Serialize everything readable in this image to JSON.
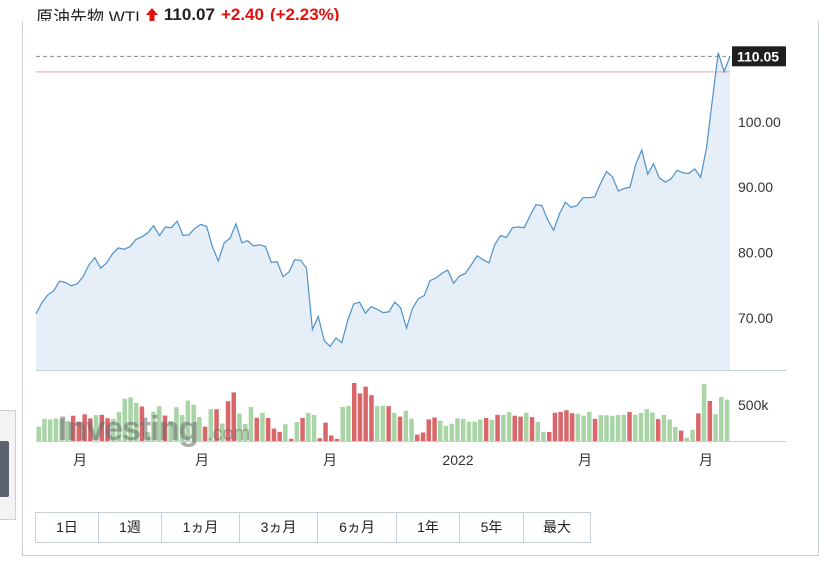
{
  "header": {
    "instrument": "原油先物 WTI",
    "direction_icon": "up-arrow-icon",
    "price": "110.07",
    "change": "+2.40",
    "change_percent": "(+2.23%)",
    "up_color": "#e0120e"
  },
  "watermark": {
    "main": "Investing",
    "suffix": ".com"
  },
  "range_buttons": [
    "1日",
    "1週",
    "1ヵ月",
    "3ヵ月",
    "6ヵ月",
    "1年",
    "5年",
    "最大"
  ],
  "chart_data": {
    "type": "area",
    "title": "",
    "xlabel": "",
    "ylabel": "",
    "ylim": [
      62,
      115
    ],
    "y_ticks": [
      "70.00",
      "80.00",
      "90.00",
      "100.00"
    ],
    "x_ticks": [
      "月",
      "月",
      "月",
      "2022",
      "月",
      "月"
    ],
    "last_price_label": "110.05",
    "reference_line": 107.67,
    "line_color": "#4e91c9",
    "fill_color": "#e6eef7",
    "grid": false,
    "series": [
      {
        "values": [
          70.6,
          72.3,
          73.5,
          74.1,
          75.6,
          75.4,
          74.9,
          75.2,
          76.3,
          78.1,
          79.2,
          77.6,
          78.4,
          79.8,
          80.7,
          80.5,
          80.9,
          82.0,
          82.4,
          83.0,
          84.1,
          82.6,
          83.9,
          83.8,
          84.8,
          82.6,
          82.7,
          83.7,
          84.3,
          84.0,
          80.9,
          78.7,
          81.5,
          82.2,
          84.4,
          81.5,
          81.8,
          81.0,
          81.2,
          80.9,
          78.5,
          78.6,
          76.3,
          77.0,
          78.9,
          78.8,
          77.6,
          68.2,
          70.2,
          66.5,
          65.6,
          66.9,
          66.2,
          69.6,
          72.1,
          72.4,
          70.7,
          71.7,
          71.3,
          70.8,
          70.9,
          72.4,
          71.5,
          68.4,
          71.4,
          72.9,
          73.4,
          75.7,
          76.1,
          76.8,
          77.3,
          75.3,
          76.4,
          76.8,
          78.1,
          79.5,
          78.9,
          78.4,
          81.2,
          82.6,
          82.3,
          83.8,
          83.9,
          83.8,
          85.6,
          87.3,
          87.2,
          85.0,
          83.4,
          85.9,
          87.7,
          86.9,
          87.2,
          88.4,
          88.4,
          88.5,
          90.6,
          92.4,
          91.6,
          89.4,
          89.8,
          90.0,
          93.6,
          95.7,
          92.0,
          93.6,
          91.4,
          90.8,
          91.3,
          92.6,
          92.2,
          92.1,
          92.8,
          91.5,
          96.0,
          103.4,
          110.6,
          107.7,
          110.05
        ]
      }
    ],
    "volume": {
      "y_ticks": [
        "500k"
      ],
      "up_color": "#a8d4a6",
      "down_color": "#d9676a",
      "bars": [
        {
          "v": 62,
          "d": 0
        },
        {
          "v": 96,
          "d": 0
        },
        {
          "v": 94,
          "d": 0
        },
        {
          "v": 98,
          "d": 0
        },
        {
          "v": 97,
          "d": 0
        },
        {
          "v": 86,
          "d": 0
        },
        {
          "v": 110,
          "d": 1
        },
        {
          "v": 84,
          "d": 1
        },
        {
          "v": 116,
          "d": 1
        },
        {
          "v": 98,
          "d": 1
        },
        {
          "v": 113,
          "d": 0
        },
        {
          "v": 114,
          "d": 1
        },
        {
          "v": 99,
          "d": 1
        },
        {
          "v": 96,
          "d": 0
        },
        {
          "v": 125,
          "d": 0
        },
        {
          "v": 184,
          "d": 0
        },
        {
          "v": 190,
          "d": 0
        },
        {
          "v": 166,
          "d": 0
        },
        {
          "v": 150,
          "d": 1
        },
        {
          "v": 40,
          "d": 0
        },
        {
          "v": 127,
          "d": 0
        },
        {
          "v": 151,
          "d": 0
        },
        {
          "v": 111,
          "d": 1
        },
        {
          "v": 87,
          "d": 0
        },
        {
          "v": 147,
          "d": 0
        },
        {
          "v": 113,
          "d": 0
        },
        {
          "v": 176,
          "d": 0
        },
        {
          "v": 158,
          "d": 0
        },
        {
          "v": 104,
          "d": 0
        },
        {
          "v": 62,
          "d": 1
        },
        {
          "v": 138,
          "d": 0
        },
        {
          "v": 138,
          "d": 1
        },
        {
          "v": 76,
          "d": 0
        },
        {
          "v": 173,
          "d": 1
        },
        {
          "v": 211,
          "d": 1
        },
        {
          "v": 119,
          "d": 0
        },
        {
          "v": 74,
          "d": 0
        },
        {
          "v": 148,
          "d": 0
        },
        {
          "v": 101,
          "d": 1
        },
        {
          "v": 122,
          "d": 0
        },
        {
          "v": 100,
          "d": 1
        },
        {
          "v": 54,
          "d": 1
        },
        {
          "v": 40,
          "d": 1
        },
        {
          "v": 73,
          "d": 0
        },
        {
          "v": 10,
          "d": 1
        },
        {
          "v": 82,
          "d": 0
        },
        {
          "v": 100,
          "d": 1
        },
        {
          "v": 122,
          "d": 0
        },
        {
          "v": 113,
          "d": 0
        },
        {
          "v": 12,
          "d": 1
        },
        {
          "v": 80,
          "d": 1
        },
        {
          "v": 24,
          "d": 1
        },
        {
          "v": 9,
          "d": 1
        },
        {
          "v": 148,
          "d": 0
        },
        {
          "v": 152,
          "d": 0
        },
        {
          "v": 252,
          "d": 1
        },
        {
          "v": 207,
          "d": 1
        },
        {
          "v": 236,
          "d": 1
        },
        {
          "v": 199,
          "d": 1
        },
        {
          "v": 151,
          "d": 0
        },
        {
          "v": 153,
          "d": 0
        },
        {
          "v": 151,
          "d": 1
        },
        {
          "v": 122,
          "d": 0
        },
        {
          "v": 106,
          "d": 1
        },
        {
          "v": 131,
          "d": 0
        },
        {
          "v": 97,
          "d": 0
        },
        {
          "v": 28,
          "d": 1
        },
        {
          "v": 37,
          "d": 1
        },
        {
          "v": 94,
          "d": 1
        },
        {
          "v": 102,
          "d": 1
        },
        {
          "v": 88,
          "d": 0
        },
        {
          "v": 66,
          "d": 0
        },
        {
          "v": 75,
          "d": 0
        },
        {
          "v": 98,
          "d": 0
        },
        {
          "v": 96,
          "d": 0
        },
        {
          "v": 84,
          "d": 0
        },
        {
          "v": 84,
          "d": 0
        },
        {
          "v": 94,
          "d": 0
        },
        {
          "v": 100,
          "d": 1
        },
        {
          "v": 92,
          "d": 0
        },
        {
          "v": 114,
          "d": 1
        },
        {
          "v": 114,
          "d": 0
        },
        {
          "v": 125,
          "d": 0
        },
        {
          "v": 110,
          "d": 1
        },
        {
          "v": 106,
          "d": 1
        },
        {
          "v": 123,
          "d": 0
        },
        {
          "v": 104,
          "d": 1
        },
        {
          "v": 83,
          "d": 0
        },
        {
          "v": 40,
          "d": 0
        },
        {
          "v": 39,
          "d": 1
        },
        {
          "v": 123,
          "d": 1
        },
        {
          "v": 126,
          "d": 1
        },
        {
          "v": 134,
          "d": 1
        },
        {
          "v": 121,
          "d": 1
        },
        {
          "v": 118,
          "d": 0
        },
        {
          "v": 110,
          "d": 0
        },
        {
          "v": 127,
          "d": 0
        },
        {
          "v": 96,
          "d": 1
        },
        {
          "v": 113,
          "d": 0
        },
        {
          "v": 112,
          "d": 0
        },
        {
          "v": 109,
          "d": 0
        },
        {
          "v": 113,
          "d": 0
        },
        {
          "v": 114,
          "d": 0
        },
        {
          "v": 126,
          "d": 1
        },
        {
          "v": 114,
          "d": 0
        },
        {
          "v": 122,
          "d": 0
        },
        {
          "v": 138,
          "d": 0
        },
        {
          "v": 124,
          "d": 0
        },
        {
          "v": 95,
          "d": 1
        },
        {
          "v": 113,
          "d": 0
        },
        {
          "v": 94,
          "d": 0
        },
        {
          "v": 61,
          "d": 0
        },
        {
          "v": 45,
          "d": 1
        },
        {
          "v": 14,
          "d": 0
        },
        {
          "v": 49,
          "d": 0
        },
        {
          "v": 120,
          "d": 1
        },
        {
          "v": 247,
          "d": 0
        },
        {
          "v": 174,
          "d": 1
        },
        {
          "v": 117,
          "d": 0
        },
        {
          "v": 191,
          "d": 0
        },
        {
          "v": 180,
          "d": 0
        }
      ]
    }
  }
}
